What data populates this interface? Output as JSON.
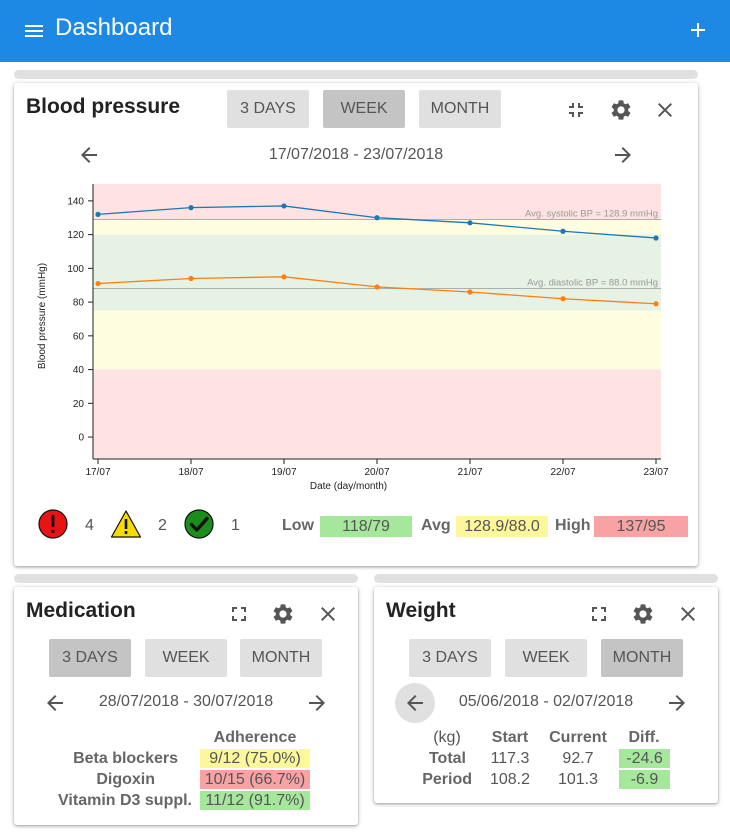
{
  "app": {
    "title": "Dashboard",
    "menu_icon": "hamburger-menu-icon",
    "add_icon": "plus-icon"
  },
  "colors": {
    "appbar": "#1e88e5",
    "systolic": "#1f77b4",
    "diastolic": "#ff7f0e",
    "zone_red": "#ffe3e3",
    "zone_yellow": "#fffde0",
    "zone_green": "#e6f2e3",
    "value_green": "#a5e89c",
    "value_yellow": "#fdf79c",
    "value_red": "#f7a3a3"
  },
  "blood_pressure": {
    "title": "Blood pressure",
    "range_buttons": [
      "3 DAYS",
      "WEEK",
      "MONTH"
    ],
    "active_range": "WEEK",
    "date_range": "17/07/2018 - 23/07/2018",
    "summary": {
      "alert_count": "4",
      "warning_count": "2",
      "ok_count": "1",
      "low_label": "Low",
      "low_value": "118/79",
      "avg_label": "Avg",
      "avg_value": "128.9/88.0",
      "high_label": "High",
      "high_value": "137/95"
    }
  },
  "chart_data": {
    "type": "line",
    "x": [
      "17/07",
      "18/07",
      "19/07",
      "20/07",
      "21/07",
      "22/07",
      "23/07"
    ],
    "series": [
      {
        "name": "systolic",
        "values": [
          132,
          136,
          137,
          130,
          127,
          122,
          118
        ]
      },
      {
        "name": "diastolic",
        "values": [
          91,
          94,
          95,
          89,
          86,
          82,
          79
        ]
      }
    ],
    "reference_lines": [
      {
        "label": "Avg. systolic BP = 128.9 mmHg",
        "value": 128.9
      },
      {
        "label": "Avg. diastolic BP = 88.0 mmHg",
        "value": 88.0
      }
    ],
    "zones": [
      {
        "from": 120,
        "to": 150,
        "color": "#ffe3e3"
      },
      {
        "from": 129,
        "to": 120,
        "color": "#fffde0"
      },
      {
        "from": 75,
        "to": 120,
        "color": "#e6f2e3"
      },
      {
        "from": 40,
        "to": 75,
        "color": "#fffde0"
      },
      {
        "from": -13,
        "to": 40,
        "color": "#ffe3e3"
      }
    ],
    "yticks": [
      0,
      20,
      40,
      60,
      80,
      100,
      120,
      140
    ],
    "ylim": [
      -13,
      150
    ],
    "xlabel": "Date (day/month)",
    "ylabel": "Blood pressure (mmHg)"
  },
  "medication": {
    "title": "Medication",
    "range_buttons": [
      "3 DAYS",
      "WEEK",
      "MONTH"
    ],
    "active_range": "3 DAYS",
    "date_range": "28/07/2018 - 30/07/2018",
    "column_header": "Adherence",
    "rows": [
      {
        "name": "Beta blockers",
        "adherence": "9/12 (75.0%)",
        "color": "#fdf79c"
      },
      {
        "name": "Digoxin",
        "adherence": "10/15 (66.7%)",
        "color": "#f7a3a3"
      },
      {
        "name": "Vitamin D3 suppl.",
        "adherence": "11/12 (91.7%)",
        "color": "#a5e89c"
      }
    ]
  },
  "weight": {
    "title": "Weight",
    "range_buttons": [
      "3 DAYS",
      "WEEK",
      "MONTH"
    ],
    "active_range": "MONTH",
    "date_range": "05/06/2018 - 02/07/2018",
    "headers": [
      "(kg)",
      "Start",
      "Current",
      "Diff."
    ],
    "rows": [
      {
        "label": "Total",
        "start": "117.3",
        "current": "92.7",
        "diff": "-24.6"
      },
      {
        "label": "Period",
        "start": "108.2",
        "current": "101.3",
        "diff": "-6.9"
      }
    ]
  }
}
